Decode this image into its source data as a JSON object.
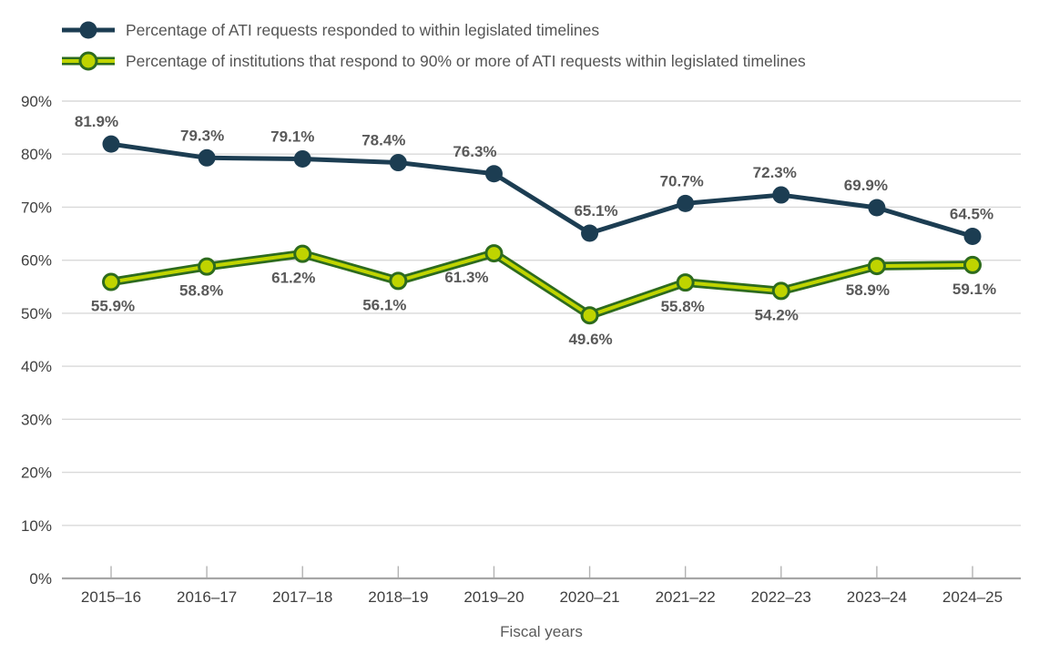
{
  "chart_data": {
    "type": "line",
    "title": "",
    "xlabel": "Fiscal years",
    "ylabel": "",
    "categories": [
      "2015–16",
      "2016–17",
      "2017–18",
      "2018–19",
      "2019–20",
      "2020–21",
      "2021–22",
      "2022–23",
      "2023–24",
      "2024–25"
    ],
    "series": [
      {
        "name": "Percentage of ATI requests responded to within legislated timelines",
        "values": [
          81.9,
          79.3,
          79.1,
          78.4,
          76.3,
          65.1,
          70.7,
          72.3,
          69.9,
          64.5
        ],
        "data_labels": [
          "81.9%",
          "79.3%",
          "79.1%",
          "78.4%",
          "76.3%",
          "65.1%",
          "70.7%",
          "72.3%",
          "69.9%",
          "64.5%"
        ],
        "color": "#1c3d52",
        "marker_fill": "#1c3d52",
        "marker_stroke": "#1c3d52",
        "label_position": "above",
        "label_dx": [
          -16,
          -5,
          -11,
          -16,
          -21,
          7,
          -4,
          -7,
          -12,
          -1
        ]
      },
      {
        "name": "Percentage of institutions that respond to 90% or more of ATI requests within legislated timelines",
        "values": [
          55.9,
          58.8,
          61.2,
          56.1,
          61.3,
          49.6,
          55.8,
          54.2,
          58.9,
          59.1
        ],
        "data_labels": [
          "55.9%",
          "58.8%",
          "61.2%",
          "56.1%",
          "61.3%",
          "49.6%",
          "55.8%",
          "54.2%",
          "58.9%",
          "59.1%"
        ],
        "color": "#bfd400",
        "outline_color": "#2d6b1e",
        "marker_fill": "#bfd400",
        "marker_stroke": "#2d6b1e",
        "label_position": "below",
        "label_dx": [
          2,
          -6,
          -10,
          -15,
          -30,
          1,
          -3,
          -5,
          -10,
          2
        ]
      }
    ],
    "y_ticks": [
      0,
      10,
      20,
      30,
      40,
      50,
      60,
      70,
      80,
      90
    ],
    "y_tick_labels": [
      "0%",
      "10%",
      "20%",
      "30%",
      "40%",
      "50%",
      "60%",
      "70%",
      "80%",
      "90%"
    ],
    "ylim": [
      0,
      90
    ],
    "grid": true,
    "legend_position": "top-left"
  },
  "colors": {
    "background": "#ffffff",
    "gridline": "#d9d9d9",
    "axis_line": "#a6a6a6",
    "tick_mark": "#b3b3b3",
    "axis_text": "#3f3f3f",
    "data_label_text": "#595959",
    "legend_text": "#545454"
  }
}
